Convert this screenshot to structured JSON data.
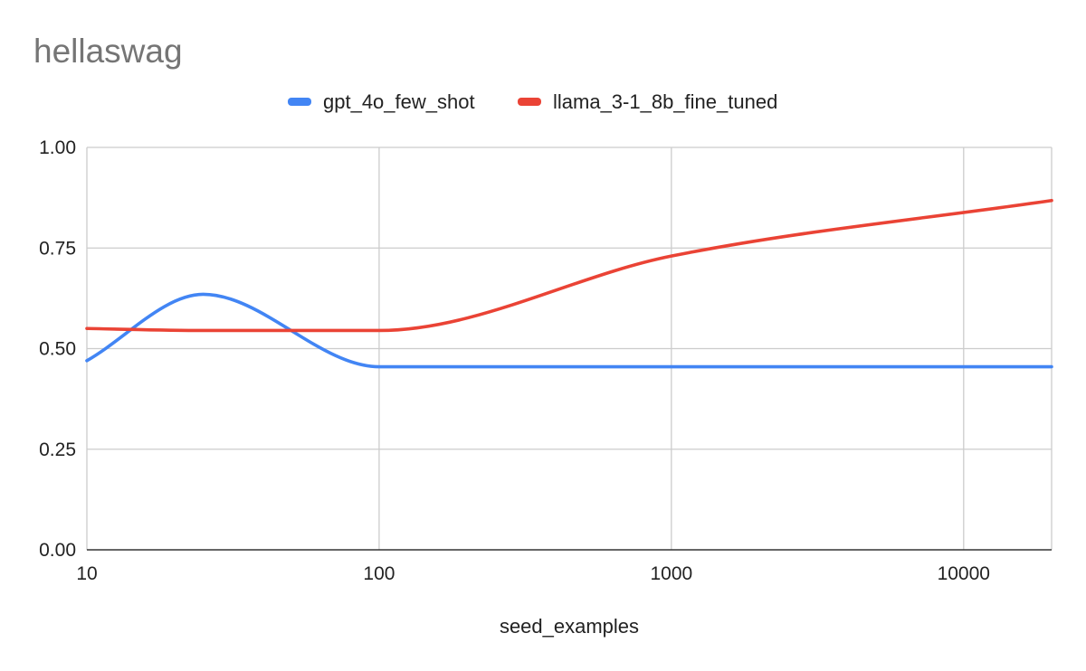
{
  "chart_data": {
    "type": "line",
    "title": "hellaswag",
    "xlabel": "seed_examples",
    "ylabel": "",
    "x_scale": "log",
    "xlim": [
      10,
      20000
    ],
    "ylim": [
      0,
      1
    ],
    "x_ticks": [
      10,
      100,
      1000,
      10000
    ],
    "x_tick_labels": [
      "10",
      "100",
      "1000",
      "10000"
    ],
    "y_ticks": [
      0,
      0.25,
      0.5,
      0.75,
      1.0
    ],
    "y_tick_labels": [
      "0.00",
      "0.25",
      "0.50",
      "0.75",
      "1.00"
    ],
    "grid": true,
    "legend_position": "top",
    "series": [
      {
        "name": "gpt_4o_few_shot",
        "color": "#4285f4",
        "x": [
          10,
          25,
          100,
          500,
          20000
        ],
        "y": [
          0.47,
          0.635,
          0.455,
          0.455,
          0.455
        ]
      },
      {
        "name": "llama_3-1_8b_fine_tuned",
        "color": "#ea4335",
        "x": [
          10,
          25,
          100,
          1000,
          20000
        ],
        "y": [
          0.55,
          0.545,
          0.545,
          0.73,
          0.868
        ]
      }
    ]
  }
}
